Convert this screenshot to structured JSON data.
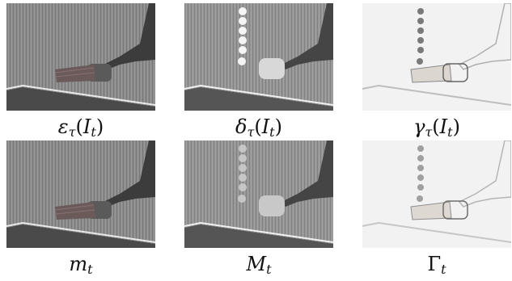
{
  "figure": {
    "panels": [
      {
        "id": "erosion",
        "caption": {
          "main": "ε",
          "sub": "τ",
          "arg_open": "(",
          "arg_main": "I",
          "arg_sub": "t",
          "arg_close": ")"
        }
      },
      {
        "id": "dilation",
        "caption": {
          "main": "δ",
          "sub": "τ",
          "arg_open": "(",
          "arg_main": "I",
          "arg_sub": "t",
          "arg_close": ")"
        }
      },
      {
        "id": "gradient",
        "caption": {
          "main": "γ",
          "sub": "τ",
          "arg_open": "(",
          "arg_main": "I",
          "arg_sub": "t",
          "arg_close": ")"
        }
      },
      {
        "id": "min-image",
        "caption": {
          "main": "m",
          "sub": "t"
        }
      },
      {
        "id": "max-image",
        "caption": {
          "main": "M",
          "sub": "t"
        }
      },
      {
        "id": "gamma-image",
        "caption": {
          "main": "Γ",
          "sub": "t"
        }
      }
    ]
  }
}
